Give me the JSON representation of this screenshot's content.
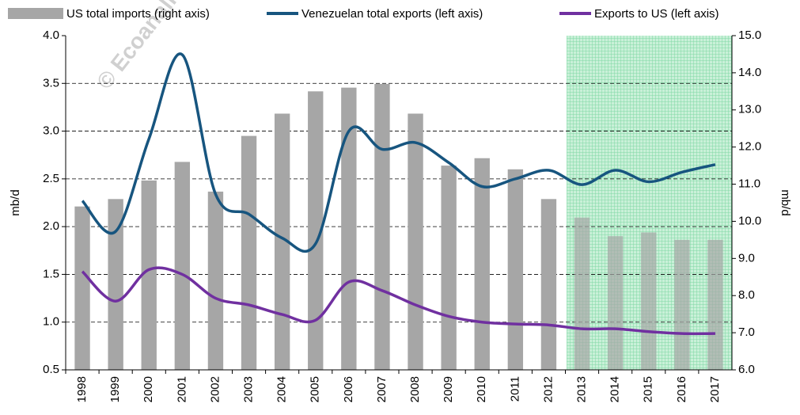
{
  "chart_data": {
    "type": "bar",
    "watermark": "© Ecoanalítica",
    "ylabel": "mb/d",
    "y2label": "mb/d",
    "categories": [
      "1998",
      "1999",
      "2000",
      "2001",
      "2002",
      "2003",
      "2004",
      "2005",
      "2006",
      "2007",
      "2008",
      "2009",
      "2010",
      "2011",
      "2012",
      "2013",
      "2014",
      "2015",
      "2016",
      "2017"
    ],
    "ylim": [
      0.5,
      4.0
    ],
    "yticks": [
      0.5,
      {
        "value": 1.0,
        "label": "1.0"
      },
      1.5,
      {
        "value": 2.0,
        "label": "2.0"
      },
      2.5,
      {
        "value": 3.0,
        "label": "3.0"
      },
      3.5,
      {
        "value": 4.0,
        "label": "4.0"
      }
    ],
    "y2lim": [
      6.0,
      15.0
    ],
    "y2ticks": [
      {
        "value": 6,
        "label": "6.0"
      },
      {
        "value": 7,
        "label": "7.0"
      },
      {
        "value": 8,
        "label": "8.0"
      },
      {
        "value": 9,
        "label": "9.0"
      },
      {
        "value": 10,
        "label": "10.0"
      },
      {
        "value": 11,
        "label": "11.0"
      },
      {
        "value": 12,
        "label": "12.0"
      },
      {
        "value": 13,
        "label": "13.0"
      },
      {
        "value": 14,
        "label": "14.0"
      },
      {
        "value": 15,
        "label": "15.0"
      }
    ],
    "grid": true,
    "series": [
      {
        "name": "US total imports (right axis)",
        "type": "bar",
        "axis": "y2",
        "color": "#a6a6a6",
        "values": [
          10.4,
          10.6,
          11.1,
          11.6,
          10.8,
          12.3,
          12.9,
          13.5,
          13.6,
          13.7,
          12.9,
          11.5,
          11.7,
          11.4,
          10.6,
          10.1,
          9.6,
          9.7,
          9.5,
          9.5
        ]
      },
      {
        "name": "Venezuelan total exports (left axis)",
        "type": "line",
        "color": "#17557f",
        "values": [
          2.27,
          1.95,
          2.92,
          3.8,
          2.34,
          2.13,
          1.88,
          1.82,
          3.0,
          2.81,
          2.88,
          2.67,
          2.42,
          2.5,
          2.59,
          2.44,
          2.59,
          2.47,
          2.57,
          2.65
        ]
      },
      {
        "name": "Exports to US (left axis)",
        "type": "line",
        "color": "#7030a0",
        "values": [
          1.53,
          1.22,
          1.55,
          1.5,
          1.25,
          1.18,
          1.08,
          1.02,
          1.42,
          1.33,
          1.18,
          1.06,
          1.0,
          0.98,
          0.97,
          0.93,
          0.93,
          0.9,
          0.88,
          0.88
        ]
      }
    ]
  }
}
